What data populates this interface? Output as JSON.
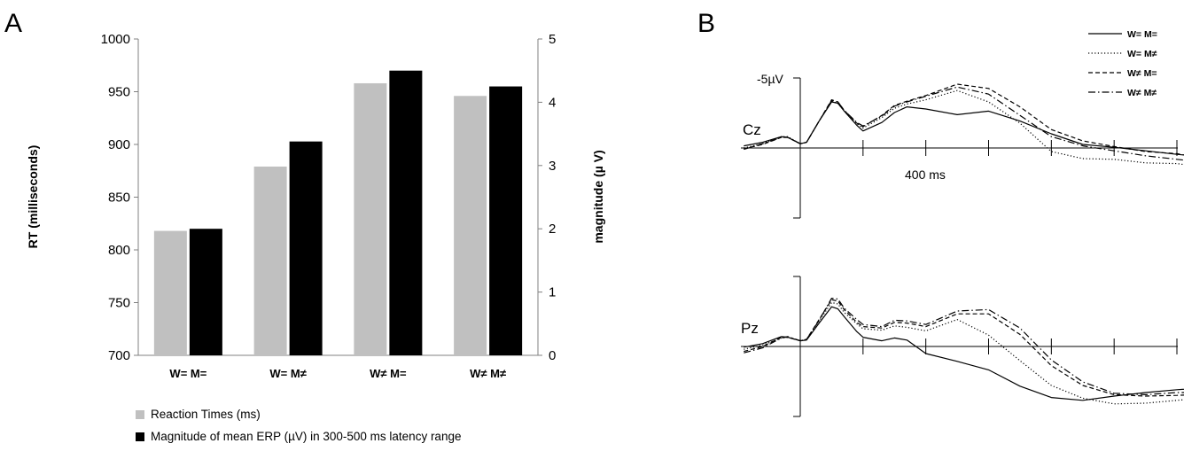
{
  "chart_data": [
    {
      "panel": "A",
      "type": "bar",
      "categories": [
        "W= M=",
        "W= M≠",
        "W≠ M=",
        "W≠ M≠"
      ],
      "y_left": {
        "label": "RT (milliseconds)",
        "lim": [
          700,
          1000
        ],
        "ticks": [
          700,
          750,
          800,
          850,
          900,
          950,
          1000
        ]
      },
      "y_right": {
        "label": "magnitude (µ V)",
        "lim": [
          0,
          5
        ],
        "ticks": [
          0,
          1,
          2,
          3,
          4,
          5
        ]
      },
      "series": [
        {
          "name": "Reaction Times (ms)",
          "axis": "left",
          "color": "#c0c0c0",
          "values": [
            818,
            879,
            958,
            946
          ]
        },
        {
          "name": "Magnitude of mean ERP (µV) in 300-500 ms latency range",
          "axis": "right",
          "color": "#000000",
          "values": [
            2.0,
            3.38,
            4.5,
            4.25
          ]
        }
      ],
      "legend_position": "bottom-left",
      "grid": false
    },
    {
      "panel": "B",
      "type": "line",
      "scale_label": "-5µV",
      "time_label": "400 ms",
      "x_unit": "ms",
      "x_ticks": [
        0,
        100,
        200,
        300,
        400,
        500,
        600,
        700,
        800,
        900
      ],
      "y_unit": "µV",
      "y_note": "negative plotted up",
      "legend_position": "top-right",
      "series": [
        {
          "name": "W= M=",
          "dash": "solid"
        },
        {
          "name": "W= M≠",
          "dash": "dotted"
        },
        {
          "name": "W≠ M=",
          "dash": "dashed"
        },
        {
          "name": "W≠ M≠",
          "dash": "dash-dot"
        }
      ],
      "channels": [
        {
          "name": "Cz",
          "x": [
            -90,
            -60,
            -30,
            -20,
            0,
            10,
            30,
            50,
            60,
            70,
            90,
            100,
            130,
            150,
            170,
            200,
            250,
            300,
            350,
            400,
            450,
            500,
            550,
            600,
            650,
            700,
            750,
            800,
            850,
            900
          ],
          "curves": [
            [
              0.3,
              0.8,
              1.6,
              1.5,
              0.6,
              0.8,
              3.8,
              6.5,
              6.3,
              5.2,
              3.2,
              2.4,
              3.6,
              5.0,
              5.8,
              5.5,
              4.7,
              5.2,
              3.8,
              2.0,
              0.5,
              0.1,
              -0.4,
              -0.9,
              -1.3,
              -1.8,
              -2.5,
              -3.2,
              -3.8,
              -4.0
            ],
            [
              0.0,
              0.6,
              1.6,
              1.6,
              0.6,
              0.8,
              3.8,
              6.6,
              6.3,
              5.2,
              3.4,
              2.8,
              4.3,
              5.6,
              6.2,
              6.8,
              8.1,
              6.5,
              3.5,
              -0.5,
              -1.5,
              -1.6,
              -2.1,
              -2.2,
              -2.8,
              -3.3,
              -3.8,
              -4.3,
              -4.9,
              -5.3
            ],
            [
              -0.1,
              0.5,
              1.5,
              1.5,
              0.6,
              0.8,
              3.8,
              6.8,
              6.5,
              5.3,
              3.5,
              3.0,
              4.6,
              6.0,
              6.6,
              7.4,
              9.0,
              8.4,
              5.8,
              2.6,
              1.0,
              0.2,
              -0.5,
              -0.8,
              -1.6,
              -2.3,
              -3.2,
              -3.9,
              -4.6,
              -5.0
            ],
            [
              -0.2,
              0.6,
              1.5,
              1.5,
              0.6,
              0.8,
              3.8,
              6.7,
              6.5,
              5.3,
              3.6,
              3.1,
              4.5,
              5.9,
              6.5,
              7.3,
              8.6,
              7.6,
              4.6,
              1.6,
              0.3,
              -0.4,
              -1.1,
              -1.6,
              -2.1,
              -2.6,
              -3.1,
              -3.7,
              -4.4,
              -4.9
            ]
          ]
        },
        {
          "name": "Pz",
          "x": [
            -90,
            -60,
            -30,
            -20,
            0,
            10,
            30,
            50,
            60,
            70,
            90,
            100,
            130,
            150,
            170,
            200,
            250,
            300,
            350,
            400,
            450,
            500,
            550,
            600,
            650,
            700,
            750,
            800,
            850,
            900
          ],
          "curves": [
            [
              -0.1,
              0.4,
              1.4,
              1.3,
              0.8,
              0.9,
              3.3,
              5.6,
              5.3,
              4.2,
              2.1,
              1.3,
              0.8,
              1.2,
              0.9,
              -1.0,
              -2.1,
              -3.3,
              -5.6,
              -7.2,
              -7.6,
              -7.0,
              -6.5,
              -6.1,
              -5.8,
              -5.3,
              -5.0,
              -5.5,
              -5.3,
              -5.2
            ],
            [
              -0.4,
              0.2,
              1.2,
              1.3,
              0.8,
              1.0,
              3.6,
              6.2,
              6.0,
              4.8,
              3.2,
              2.5,
              2.3,
              2.9,
              2.7,
              2.2,
              3.8,
              1.6,
              -2.0,
              -5.5,
              -7.3,
              -8.1,
              -8.0,
              -7.6,
              -7.2,
              -6.8,
              -6.6,
              -7.0,
              -7.2,
              -7.4
            ],
            [
              -0.7,
              0.0,
              1.3,
              1.3,
              0.8,
              1.0,
              3.8,
              6.6,
              6.4,
              5.2,
              3.4,
              2.8,
              2.6,
              3.4,
              3.3,
              2.8,
              4.6,
              4.6,
              1.7,
              -2.7,
              -5.5,
              -6.8,
              -7.0,
              -6.9,
              -6.7,
              -6.4,
              -6.2,
              -6.6,
              -6.8,
              -7.0
            ],
            [
              -0.9,
              -0.2,
              1.2,
              1.4,
              0.8,
              1.0,
              3.7,
              6.8,
              6.7,
              5.4,
              3.8,
              3.1,
              2.8,
              3.7,
              3.6,
              3.1,
              5.0,
              5.2,
              2.6,
              -1.9,
              -5.0,
              -6.6,
              -6.8,
              -6.5,
              -6.5,
              -6.1,
              -5.9,
              -6.2,
              -6.5,
              -6.6
            ]
          ]
        }
      ]
    }
  ]
}
